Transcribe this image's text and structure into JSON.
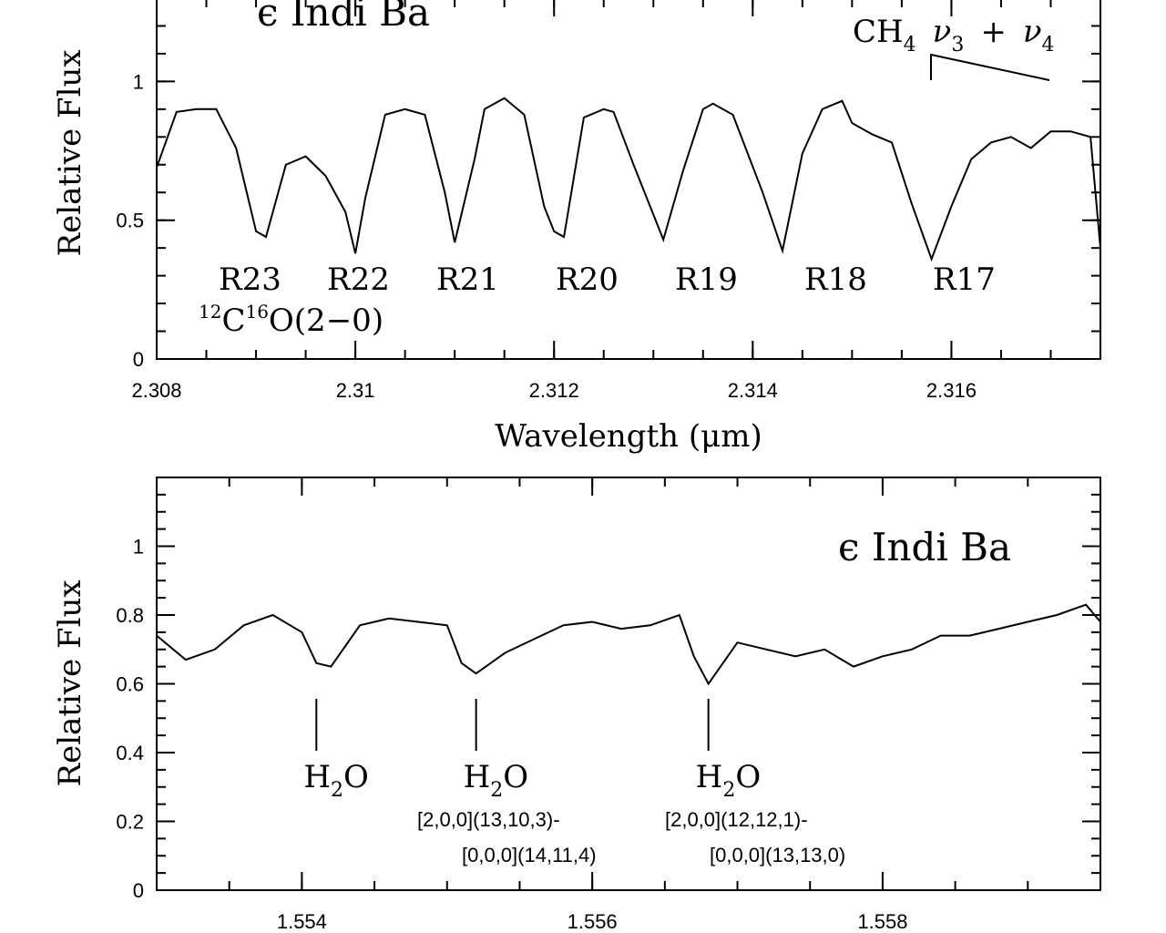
{
  "chart_data": [
    {
      "type": "line",
      "title": "ϵ Indi Ba",
      "xlabel": "Wavelength (μm)",
      "ylabel": "Relative Flux",
      "xlim": [
        2.308,
        2.3175
      ],
      "ylim": [
        0,
        1.3
      ],
      "x_ticks": [
        {
          "value": 2.308,
          "label": "2.308"
        },
        {
          "value": 2.31,
          "label": "2.31"
        },
        {
          "value": 2.312,
          "label": "2.312"
        },
        {
          "value": 2.314,
          "label": "2.314"
        },
        {
          "value": 2.316,
          "label": "2.316"
        }
      ],
      "y_ticks": [
        {
          "value": 0,
          "label": "0"
        },
        {
          "value": 0.5,
          "label": "0.5"
        },
        {
          "value": 1,
          "label": "1"
        }
      ],
      "series": [
        {
          "x": [
            2.308,
            2.3082,
            2.3084,
            2.3086,
            2.3088,
            2.309,
            2.3091,
            2.3093,
            2.3095,
            2.3097,
            2.3099,
            2.31,
            2.3101,
            2.3103,
            2.3105,
            2.3107,
            2.3109,
            2.311,
            2.3112,
            2.3113,
            2.3115,
            2.3117,
            2.3119,
            2.312,
            2.3121,
            2.3123,
            2.3125,
            2.3126,
            2.3128,
            2.3131,
            2.3133,
            2.3135,
            2.3136,
            2.3138,
            2.3141,
            2.3143,
            2.3145,
            2.3147,
            2.3149,
            2.315,
            2.3152,
            2.3154,
            2.3156,
            2.3158,
            2.316,
            2.3162,
            2.3164,
            2.3166,
            2.3168,
            2.317,
            2.3172,
            2.3174,
            2.3175
          ],
          "y": [
            0.69,
            0.89,
            0.9,
            0.9,
            0.76,
            0.46,
            0.44,
            0.7,
            0.73,
            0.66,
            0.53,
            0.38,
            0.58,
            0.88,
            0.9,
            0.88,
            0.6,
            0.42,
            0.72,
            0.9,
            0.94,
            0.88,
            0.55,
            0.46,
            0.44,
            0.87,
            0.9,
            0.89,
            0.7,
            0.43,
            0.68,
            0.9,
            0.92,
            0.88,
            0.6,
            0.39,
            0.74,
            0.9,
            0.93,
            0.85,
            0.81,
            0.78,
            0.56,
            0.36,
            0.55,
            0.72,
            0.78,
            0.8,
            0.76,
            0.82,
            0.82,
            0.8,
            0.4
          ]
        }
      ],
      "annotations": {
        "lines": [
          "R23",
          "R22",
          "R21",
          "R20",
          "R19",
          "R18",
          "R17"
        ],
        "band_prefix_12": "12",
        "band_C": "C",
        "band_prefix_16": "16",
        "band_O": "O(2−0)",
        "ch4_main": "CH",
        "ch4_sub": "4",
        "nu": "ν",
        "nu3_sub": "3",
        "plus": "+",
        "nu4_sub": "4"
      }
    },
    {
      "type": "line",
      "title": "ϵ Indi Ba",
      "xlabel": "",
      "ylabel": "Relative Flux",
      "xlim": [
        1.553,
        1.5595
      ],
      "ylim": [
        0,
        1.2
      ],
      "x_ticks": [
        {
          "value": 1.554,
          "label": "1.554"
        },
        {
          "value": 1.556,
          "label": "1.556"
        },
        {
          "value": 1.558,
          "label": "1.558"
        }
      ],
      "y_ticks": [
        {
          "value": 0,
          "label": "0"
        },
        {
          "value": 0.2,
          "label": "0.2"
        },
        {
          "value": 0.4,
          "label": "0.4"
        },
        {
          "value": 0.6,
          "label": "0.6"
        },
        {
          "value": 0.8,
          "label": "0.8"
        },
        {
          "value": 1,
          "label": "1"
        }
      ],
      "series": [
        {
          "x": [
            1.553,
            1.5532,
            1.5534,
            1.5536,
            1.5538,
            1.554,
            1.5541,
            1.5542,
            1.5544,
            1.5546,
            1.5548,
            1.555,
            1.5551,
            1.5552,
            1.5554,
            1.5556,
            1.5558,
            1.556,
            1.5562,
            1.5564,
            1.5566,
            1.5567,
            1.5568,
            1.557,
            1.5572,
            1.5574,
            1.5576,
            1.5578,
            1.558,
            1.5582,
            1.5584,
            1.5586,
            1.5588,
            1.559,
            1.5592,
            1.5594,
            1.5595
          ],
          "y": [
            0.74,
            0.67,
            0.7,
            0.77,
            0.8,
            0.75,
            0.66,
            0.65,
            0.77,
            0.79,
            0.78,
            0.77,
            0.66,
            0.63,
            0.69,
            0.73,
            0.77,
            0.78,
            0.76,
            0.77,
            0.8,
            0.68,
            0.6,
            0.72,
            0.7,
            0.68,
            0.7,
            0.65,
            0.68,
            0.7,
            0.74,
            0.74,
            0.76,
            0.78,
            0.8,
            0.83,
            0.78
          ]
        }
      ],
      "annotations": {
        "h2o": [
          {
            "x": 1.5541,
            "label_main": "H",
            "label_sub": "2",
            "label_end": "O",
            "quantum_1": "",
            "quantum_2": ""
          },
          {
            "x": 1.5552,
            "label_main": "H",
            "label_sub": "2",
            "label_end": "O",
            "quantum_1": "[2,0,0](13,10,3)-",
            "quantum_2": "[0,0,0](14,11,4)"
          },
          {
            "x": 1.5568,
            "label_main": "H",
            "label_sub": "2",
            "label_end": "O",
            "quantum_1": "[2,0,0](12,12,1)-",
            "quantum_2": "[0,0,0](13,13,0)"
          }
        ]
      }
    }
  ]
}
